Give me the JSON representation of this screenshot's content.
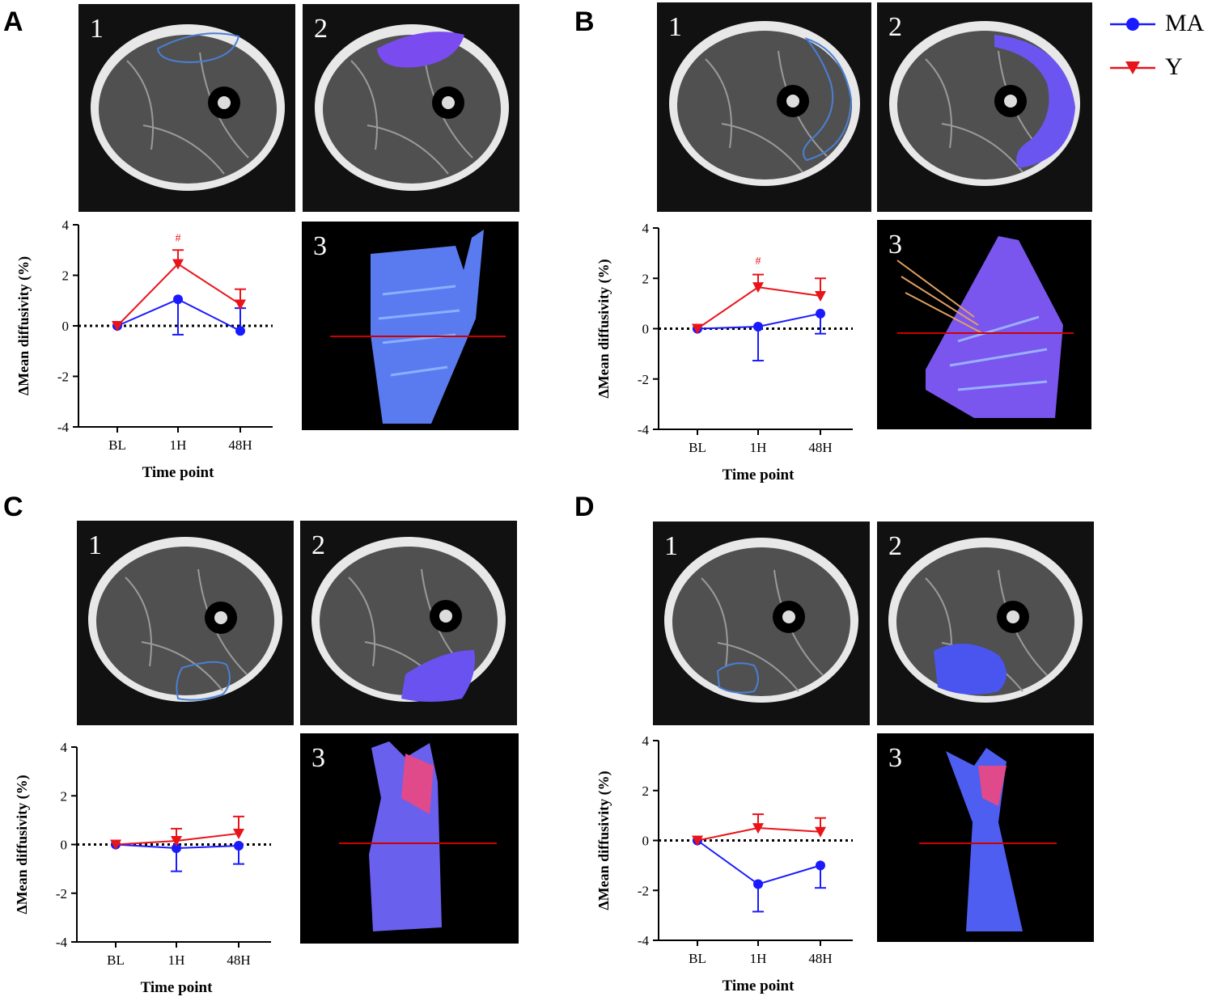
{
  "legend": [
    {
      "label": "MA",
      "color": "#1a1aff",
      "marker": "circle"
    },
    {
      "label": "Y",
      "color": "#e8141a",
      "marker": "triangle-down"
    }
  ],
  "panels": [
    {
      "letter": "A",
      "img1": "1",
      "img2": "2",
      "img3": "3"
    },
    {
      "letter": "B",
      "img1": "1",
      "img2": "2",
      "img3": "3"
    },
    {
      "letter": "C",
      "img1": "1",
      "img2": "2",
      "img3": "3"
    },
    {
      "letter": "D",
      "img1": "1",
      "img2": "2",
      "img3": "3"
    }
  ],
  "chart_data": [
    {
      "type": "line",
      "panel": "A",
      "xlabel": "Time point",
      "ylabel": "ΔMean diffusivity (%)",
      "categories": [
        "BL",
        "1H",
        "48H"
      ],
      "ylim": [
        -4,
        4
      ],
      "yticks": [
        -4,
        -2,
        0,
        2,
        4
      ],
      "series": [
        {
          "name": "MA",
          "values": [
            0,
            1.05,
            -0.2
          ],
          "err_up": [
            0,
            0,
            0.9
          ],
          "err_down": [
            0,
            1.4,
            0
          ]
        },
        {
          "name": "Y",
          "values": [
            0,
            2.45,
            0.85
          ],
          "err_up": [
            0,
            0.55,
            0.6
          ],
          "err_down": [
            0,
            0,
            0
          ]
        }
      ],
      "annotations": [
        {
          "text": "#",
          "category": "1H",
          "y": 3.35
        }
      ]
    },
    {
      "type": "line",
      "panel": "B",
      "xlabel": "Time point",
      "ylabel": "ΔMean diffusivity (%)",
      "categories": [
        "BL",
        "1H",
        "48H"
      ],
      "ylim": [
        -4,
        4
      ],
      "yticks": [
        -4,
        -2,
        0,
        2,
        4
      ],
      "series": [
        {
          "name": "MA",
          "values": [
            0,
            0.08,
            0.6
          ],
          "err_up": [
            0,
            0,
            0
          ],
          "err_down": [
            0,
            1.35,
            0.8
          ]
        },
        {
          "name": "Y",
          "values": [
            0,
            1.65,
            1.3
          ],
          "err_up": [
            0,
            0.5,
            0.7
          ],
          "err_down": [
            0,
            0,
            0
          ]
        }
      ],
      "annotations": [
        {
          "text": "#",
          "category": "1H",
          "y": 2.55
        }
      ]
    },
    {
      "type": "line",
      "panel": "C",
      "xlabel": "Time point",
      "ylabel": "ΔMean diffusivity (%)",
      "categories": [
        "BL",
        "1H",
        "48H"
      ],
      "ylim": [
        -4,
        4
      ],
      "yticks": [
        -4,
        -2,
        0,
        2,
        4
      ],
      "series": [
        {
          "name": "MA",
          "values": [
            0,
            -0.15,
            -0.05
          ],
          "err_up": [
            0,
            0,
            0
          ],
          "err_down": [
            0,
            0.95,
            0.75
          ]
        },
        {
          "name": "Y",
          "values": [
            0,
            0.15,
            0.45
          ],
          "err_up": [
            0,
            0.5,
            0.7
          ],
          "err_down": [
            0,
            0,
            0
          ]
        }
      ],
      "annotations": []
    },
    {
      "type": "line",
      "panel": "D",
      "xlabel": "Time point",
      "ylabel": "ΔMean diffusivity (%)",
      "categories": [
        "BL",
        "1H",
        "48H"
      ],
      "ylim": [
        -4,
        4
      ],
      "yticks": [
        -4,
        -2,
        0,
        2,
        4
      ],
      "series": [
        {
          "name": "MA",
          "values": [
            0,
            -1.75,
            -1.0
          ],
          "err_up": [
            0,
            0,
            0
          ],
          "err_down": [
            0,
            1.1,
            0.9
          ]
        },
        {
          "name": "Y",
          "values": [
            0,
            0.5,
            0.35
          ],
          "err_up": [
            0,
            0.55,
            0.55
          ],
          "err_down": [
            0,
            0,
            0
          ]
        }
      ],
      "annotations": []
    }
  ]
}
